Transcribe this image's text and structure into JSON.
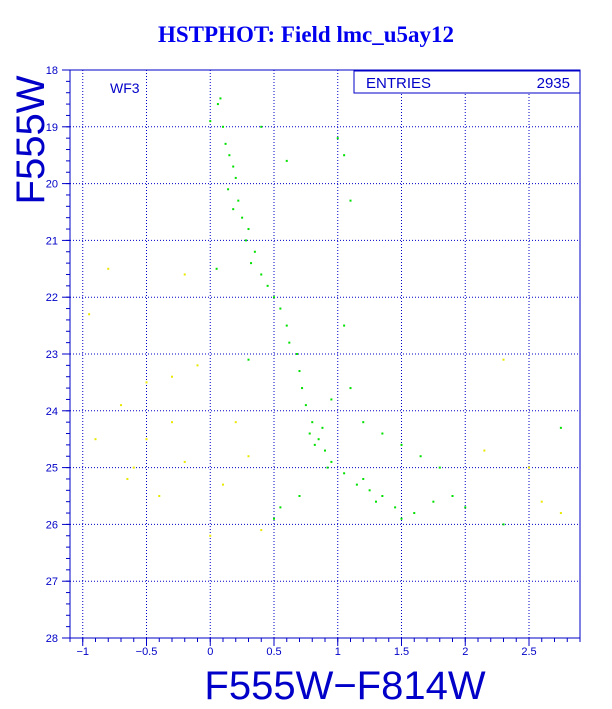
{
  "title": "HSTPHOT: Field lmc_u5ay12",
  "colors": {
    "axis": "#0000c8",
    "grid": "#0000c8",
    "main_points": "#00e000",
    "faint_points": "#e8e800",
    "title": "#0000ee"
  },
  "stats_box": {
    "label": "ENTRIES",
    "value": "2935"
  },
  "chart_data": {
    "type": "scatter",
    "title": "HSTPHOT: Field lmc_u5ay12",
    "annotation": "WF3",
    "xlabel": "F555W−F814W",
    "ylabel": "F555W",
    "xlim": [
      -1.1,
      2.9
    ],
    "ylim": [
      28,
      18
    ],
    "y_inverted": true,
    "grid": true,
    "x_ticks": [
      -1,
      -0.5,
      0,
      0.5,
      1,
      1.5,
      2,
      2.5
    ],
    "x_tick_labels": [
      "−1",
      "−0.5",
      "0",
      "0.5",
      "1",
      "1.5",
      "2",
      "2.5"
    ],
    "y_ticks": [
      18,
      19,
      20,
      21,
      22,
      23,
      24,
      25,
      26,
      27,
      28
    ],
    "entries": 2935,
    "series": [
      {
        "color": "#00e000",
        "points": [
          [
            0.08,
            18.5
          ],
          [
            0.06,
            18.6
          ],
          [
            0.1,
            19.0
          ],
          [
            0.12,
            19.3
          ],
          [
            0.15,
            19.5
          ],
          [
            0.18,
            19.7
          ],
          [
            0.2,
            19.9
          ],
          [
            0.14,
            20.1
          ],
          [
            0.22,
            20.3
          ],
          [
            0.18,
            20.45
          ],
          [
            0.25,
            20.6
          ],
          [
            0.3,
            20.8
          ],
          [
            0.28,
            21.0
          ],
          [
            0.35,
            21.2
          ],
          [
            0.32,
            21.4
          ],
          [
            0.4,
            21.6
          ],
          [
            0.45,
            21.8
          ],
          [
            0.5,
            22.0
          ],
          [
            0.55,
            22.2
          ],
          [
            0.6,
            22.5
          ],
          [
            0.62,
            22.8
          ],
          [
            0.68,
            23.0
          ],
          [
            0.7,
            23.3
          ],
          [
            0.72,
            23.6
          ],
          [
            0.75,
            23.9
          ],
          [
            0.8,
            24.2
          ],
          [
            0.85,
            24.5
          ],
          [
            0.9,
            24.7
          ],
          [
            0.95,
            24.9
          ],
          [
            1.05,
            25.1
          ],
          [
            1.15,
            25.3
          ],
          [
            1.25,
            25.4
          ],
          [
            1.35,
            25.5
          ],
          [
            1.45,
            25.7
          ],
          [
            1.6,
            25.8
          ],
          [
            1.75,
            25.6
          ],
          [
            1.9,
            25.5
          ],
          [
            2.0,
            25.7
          ],
          [
            0.95,
            23.8
          ],
          [
            1.1,
            23.6
          ],
          [
            1.2,
            24.2
          ],
          [
            1.35,
            24.4
          ],
          [
            1.5,
            24.6
          ],
          [
            1.65,
            24.8
          ],
          [
            1.8,
            25.0
          ],
          [
            1.05,
            22.5
          ],
          [
            1.0,
            19.2
          ],
          [
            1.05,
            19.5
          ],
          [
            1.1,
            20.3
          ],
          [
            0.4,
            19.0
          ],
          [
            0.6,
            19.6
          ],
          [
            0.78,
            24.4
          ],
          [
            0.82,
            24.6
          ],
          [
            0.88,
            24.3
          ],
          [
            0.92,
            25.0
          ],
          [
            1.2,
            25.2
          ],
          [
            1.3,
            25.6
          ],
          [
            0.7,
            25.5
          ],
          [
            0.55,
            25.7
          ],
          [
            0.5,
            25.9
          ],
          [
            1.5,
            25.9
          ],
          [
            2.3,
            26.0
          ],
          [
            2.75,
            24.3
          ],
          [
            0.0,
            18.9
          ],
          [
            0.05,
            21.5
          ],
          [
            0.3,
            23.1
          ]
        ]
      },
      {
        "color": "#e8e800",
        "points": [
          [
            -0.8,
            21.5
          ],
          [
            -0.5,
            23.5
          ],
          [
            -0.3,
            24.2
          ],
          [
            -0.9,
            24.5
          ],
          [
            -0.6,
            25.0
          ],
          [
            -0.2,
            24.9
          ],
          [
            -0.1,
            23.2
          ],
          [
            -0.7,
            23.9
          ],
          [
            0.1,
            25.3
          ],
          [
            0.3,
            24.8
          ],
          [
            -0.4,
            25.5
          ],
          [
            2.3,
            23.1
          ],
          [
            2.5,
            25.0
          ],
          [
            2.6,
            25.6
          ],
          [
            2.15,
            24.7
          ],
          [
            -0.2,
            21.6
          ],
          [
            0.0,
            26.2
          ],
          [
            -0.95,
            22.3
          ],
          [
            0.4,
            26.1
          ],
          [
            -0.5,
            24.5
          ],
          [
            0.2,
            24.2
          ],
          [
            -0.3,
            23.4
          ],
          [
            -0.65,
            25.2
          ],
          [
            2.75,
            25.8
          ]
        ]
      }
    ]
  }
}
